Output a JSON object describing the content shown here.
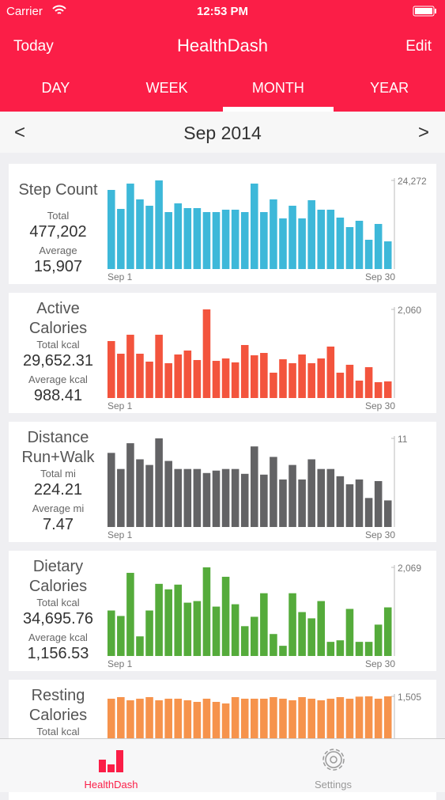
{
  "status_bar": {
    "carrier": "Carrier",
    "time": "12:53 PM"
  },
  "nav": {
    "left": "Today",
    "title": "HealthDash",
    "right": "Edit"
  },
  "tabs": {
    "items": [
      "DAY",
      "WEEK",
      "MONTH",
      "YEAR"
    ],
    "selected": 2
  },
  "period": {
    "prev": "<",
    "label": "Sep 2014",
    "next": ">"
  },
  "cards": [
    {
      "title": "Step Count",
      "total_label": "Total",
      "total": "477,202",
      "average_label": "Average",
      "average": "15,907",
      "chart": {
        "type": "bar",
        "color": "#3db8d9",
        "ylim": [
          0,
          24272
        ],
        "yticks": [
          {
            "value": 24272,
            "label": "24,272"
          }
        ],
        "x_start": "Sep 1",
        "x_end": "Sep 30",
        "values": [
          21670,
          16470,
          23400,
          19070,
          17340,
          24272,
          15600,
          17990,
          16690,
          16690,
          15600,
          15600,
          16250,
          16250,
          15600,
          23400,
          15600,
          19070,
          13870,
          17340,
          13870,
          18850,
          16250,
          16250,
          14090,
          11490,
          13220,
          8020,
          12350,
          7580
        ]
      }
    },
    {
      "title": "Active Calories",
      "total_label": "Total kcal",
      "total": "29,652.31",
      "average_label": "Average kcal",
      "average": "988.41",
      "chart": {
        "type": "bar",
        "color": "#f3543d",
        "ylim": [
          0,
          2060
        ],
        "yticks": [
          {
            "value": 2060,
            "label": "2,060"
          }
        ],
        "x_start": "Sep 1",
        "x_end": "Sep 30",
        "values": [
          1324,
          1030,
          1471,
          1030,
          846,
          1471,
          809,
          1012,
          1104,
          883,
          2060,
          864,
          920,
          828,
          1232,
          993,
          1048,
          589,
          901,
          809,
          1012,
          809,
          920,
          1196,
          589,
          773,
          405,
          717,
          368,
          386
        ]
      }
    },
    {
      "title": "Distance Run+Walk",
      "total_label": "Total mi",
      "total": "224.21",
      "average_label": "Average mi",
      "average": "7.47",
      "chart": {
        "type": "bar",
        "color": "#636365",
        "ylim": [
          0,
          11
        ],
        "yticks": [
          11
        ],
        "x_start": "Sep 1",
        "x_end": "Sep 30",
        "values": [
          9.2,
          7.2,
          10.4,
          8.4,
          7.7,
          11,
          8.2,
          7.2,
          7.2,
          7.2,
          6.7,
          7.0,
          7.2,
          7.2,
          6.6,
          10.0,
          6.5,
          8.7,
          5.9,
          7.7,
          5.9,
          8.4,
          7.2,
          7.2,
          6.3,
          5.3,
          5.9,
          3.6,
          5.7,
          3.3
        ]
      }
    },
    {
      "title": "Dietary Calories",
      "total_label": "Total kcal",
      "total": "34,695.76",
      "average_label": "Average kcal",
      "average": "1,156.53",
      "chart": {
        "type": "bar",
        "color": "#55ab3b",
        "ylim": [
          0,
          2069
        ],
        "yticks": [
          {
            "value": 2069,
            "label": "2,069"
          }
        ],
        "x_start": "Sep 1",
        "x_end": "Sep 30",
        "values": [
          1062,
          934,
          1941,
          458,
          1062,
          1684,
          1556,
          1666,
          1245,
          1282,
          2069,
          1153,
          1849,
          1208,
          696,
          915,
          1465,
          513,
          238,
          1465,
          1025,
          879,
          1282,
          330,
          366,
          1099,
          330,
          330,
          732,
          1135
        ]
      }
    },
    {
      "title": "Resting Calories",
      "total_label": "Total kcal",
      "chart": {
        "type": "bar",
        "color": "#f6934c",
        "ylim": [
          0,
          1505
        ],
        "yticks": [
          {
            "value": 1505,
            "label": "1,505"
          }
        ],
        "values": [
          1465,
          1492,
          1438,
          1465,
          1492,
          1438,
          1465,
          1465,
          1438,
          1411,
          1465,
          1411,
          1384,
          1492,
          1465,
          1465,
          1465,
          1492,
          1465,
          1438,
          1492,
          1465,
          1438,
          1465,
          1492,
          1465,
          1500,
          1505,
          1465,
          1505
        ]
      }
    }
  ],
  "tab_bar": {
    "items": [
      "HealthDash",
      "Settings"
    ],
    "selected": 0
  }
}
